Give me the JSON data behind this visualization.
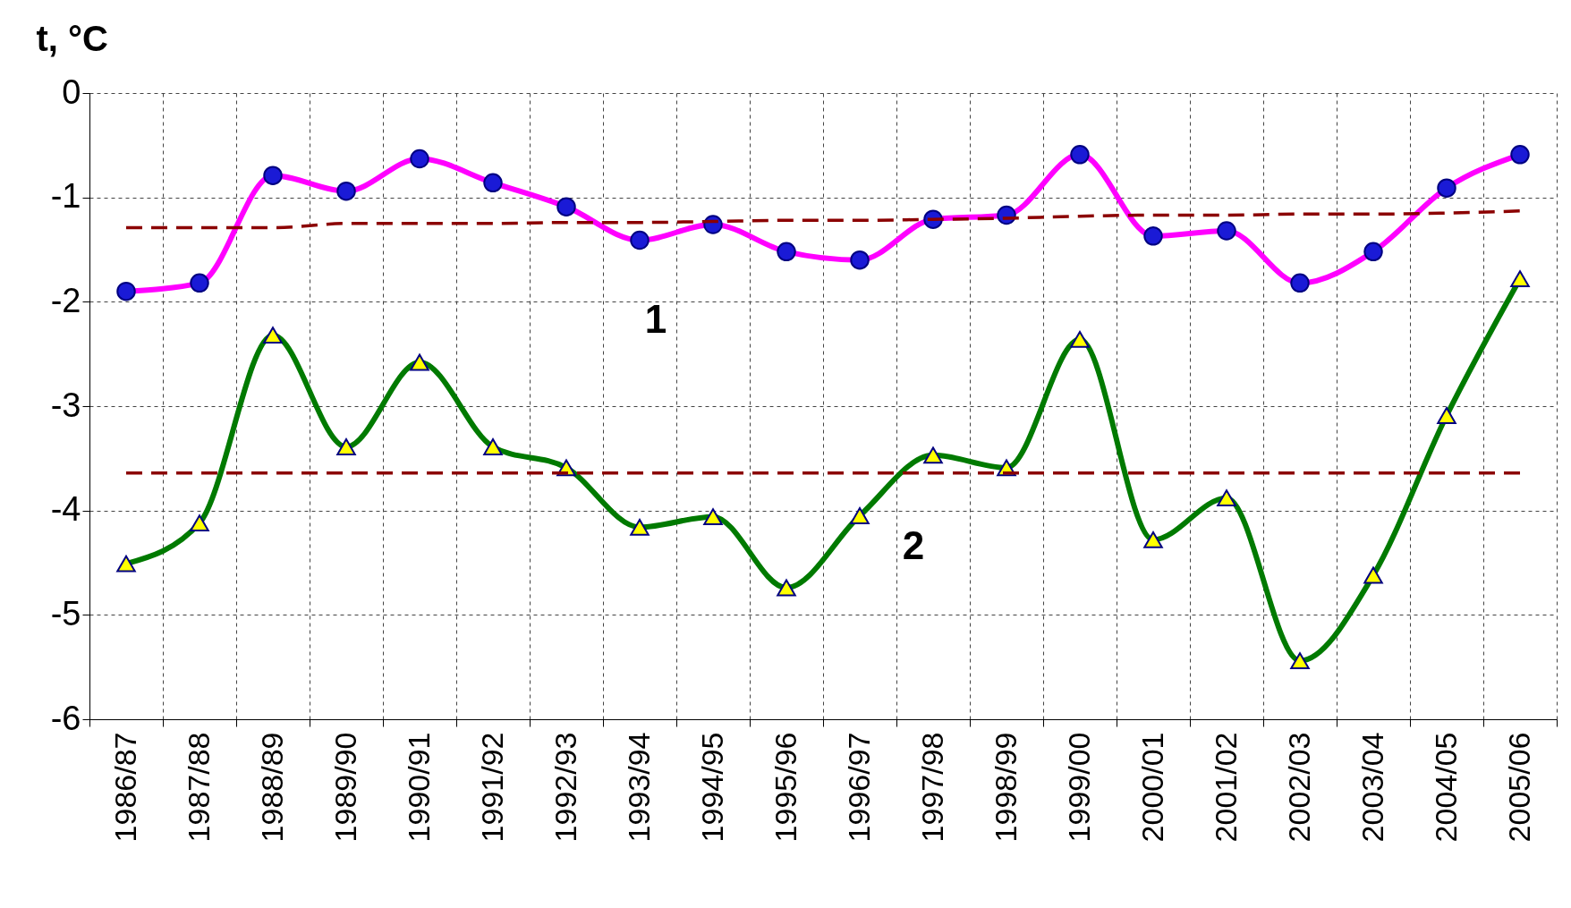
{
  "chart_data": {
    "type": "line",
    "ylabel": "t, °C",
    "categories": [
      "1986/87",
      "1987/88",
      "1988/89",
      "1989/90",
      "1990/91",
      "1991/92",
      "1992/93",
      "1993/94",
      "1994/95",
      "1995/96",
      "1996/97",
      "1997/98",
      "1998/99",
      "1999/00",
      "2000/01",
      "2001/02",
      "2002/03",
      "2003/04",
      "2004/05",
      "2005/06"
    ],
    "series": [
      {
        "name": "1",
        "color": "#ff00ff",
        "marker": "circle",
        "line_style": "solid",
        "values": [
          -1.9,
          -1.82,
          -0.79,
          -0.94,
          -0.63,
          -0.86,
          -1.09,
          -1.41,
          -1.26,
          -1.52,
          -1.6,
          -1.21,
          -1.17,
          -0.59,
          -1.37,
          -1.32,
          -1.82,
          -1.52,
          -0.91,
          -0.59
        ]
      },
      {
        "name": "2",
        "color": "#007a00",
        "marker": "triangle",
        "line_style": "solid",
        "values": [
          -4.51,
          -4.12,
          -2.32,
          -3.39,
          -2.58,
          -3.39,
          -3.59,
          -4.16,
          -4.06,
          -4.74,
          -4.05,
          -3.47,
          -3.59,
          -2.36,
          -4.28,
          -3.88,
          -5.44,
          -4.62,
          -3.09,
          -1.78
        ]
      },
      {
        "color": "#8b0000",
        "line_style": "dashed",
        "values": [
          -1.29,
          -1.29,
          -1.29,
          -1.25,
          -1.25,
          -1.25,
          -1.24,
          -1.24,
          -1.23,
          -1.22,
          -1.22,
          -1.21,
          -1.2,
          -1.18,
          -1.17,
          -1.17,
          -1.16,
          -1.16,
          -1.15,
          -1.13
        ]
      },
      {
        "color": "#8b0000",
        "line_style": "dashed",
        "values": [
          -3.64,
          -3.64,
          -3.64,
          -3.64,
          -3.64,
          -3.64,
          -3.64,
          -3.64,
          -3.64,
          -3.64,
          -3.64,
          -3.64,
          -3.64,
          -3.64,
          -3.64,
          -3.64,
          -3.64,
          -3.64,
          -3.64,
          -3.64
        ]
      }
    ],
    "ylim": [
      -6,
      0
    ],
    "yticks": [
      -6,
      -5,
      -4,
      -3,
      -2,
      -1,
      0
    ],
    "grid": true
  }
}
